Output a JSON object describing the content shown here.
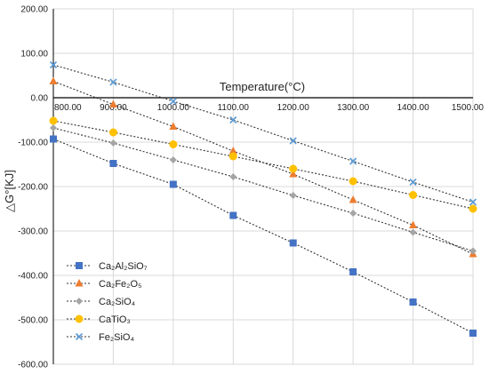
{
  "chart_data": {
    "type": "line",
    "title": "",
    "xlabel": "Temperature(°C)",
    "ylabel": "△G°[KJ]",
    "x": [
      800,
      900,
      1000,
      1100,
      1200,
      1300,
      1400,
      1500
    ],
    "xlim": [
      800,
      1500
    ],
    "ylim": [
      -600,
      200
    ],
    "x_ticks": [
      "800.00",
      "900.00",
      "1000.00",
      "1100.00",
      "1200.00",
      "1300.00",
      "1400.00",
      "1500.00"
    ],
    "y_ticks": [
      {
        "value": 200,
        "label": "200.00"
      },
      {
        "value": 100,
        "label": "100.00"
      },
      {
        "value": 0,
        "label": "0.00"
      },
      {
        "value": -100,
        "label": "-100.00"
      },
      {
        "value": -200,
        "label": "-200.00"
      },
      {
        "value": -300,
        "label": "-300.00"
      },
      {
        "value": -400,
        "label": "-400.00"
      },
      {
        "value": -500,
        "label": "-500.00"
      },
      {
        "value": -600,
        "label": "-600.00"
      }
    ],
    "grid": true,
    "legend_position": "bottom-left",
    "series": [
      {
        "name": "Ca₂Al₂SiO₇",
        "color": "#4472c4",
        "marker": "square",
        "values": [
          -93,
          -148,
          -195,
          -265,
          -327,
          -392,
          -460,
          -530
        ]
      },
      {
        "name": "Ca₂Fe₂O₅",
        "color": "#ed7d31",
        "marker": "triangle",
        "values": [
          37,
          -15,
          -65,
          -120,
          -172,
          -230,
          -287,
          -352
        ]
      },
      {
        "name": "Ca₂SiO₄",
        "color": "#a5a5a5",
        "marker": "diamond",
        "values": [
          -68,
          -102,
          -140,
          -178,
          -220,
          -260,
          -303,
          -345
        ]
      },
      {
        "name": "CaTiO₃",
        "color": "#ffc000",
        "marker": "circle",
        "values": [
          -52,
          -78,
          -105,
          -132,
          -160,
          -188,
          -219,
          -250
        ]
      },
      {
        "name": "Fe₂SiO₄",
        "color": "#5b9bd5",
        "marker": "x",
        "values": [
          74,
          35,
          -8,
          -50,
          -97,
          -143,
          -190,
          -235
        ]
      }
    ]
  }
}
